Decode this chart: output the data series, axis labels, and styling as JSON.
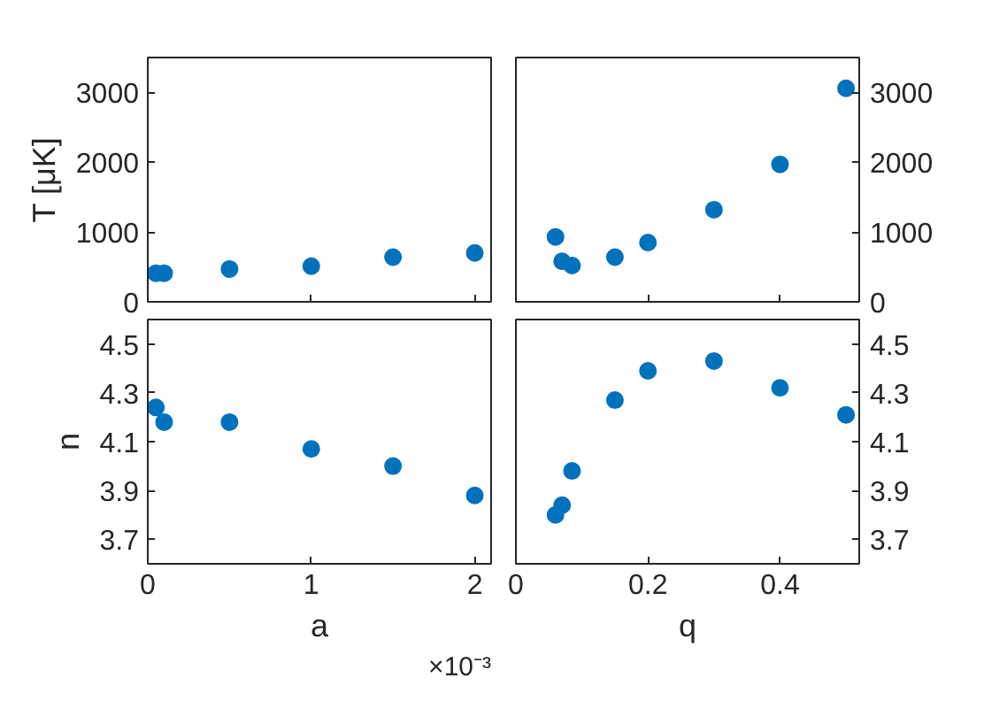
{
  "chart_data": [
    {
      "type": "scatter",
      "ylabel": "T [μK]",
      "x": [
        0.05,
        0.1,
        0.5,
        1,
        1.5,
        2
      ],
      "xlim": [
        0,
        2.1
      ],
      "xticks": [
        0,
        1,
        2
      ],
      "ylim": [
        0,
        3500
      ],
      "yticks": [
        0,
        1000,
        2000,
        3000
      ],
      "tick_labels": "y",
      "marker": "circle",
      "grid": false,
      "series": [
        {
          "color": "#0072bd",
          "values": [
            410,
            410,
            470,
            510,
            640,
            700
          ]
        }
      ]
    },
    {
      "type": "scatter",
      "x": [
        0.06,
        0.07,
        0.085,
        0.15,
        0.2,
        0.3,
        0.4,
        0.5
      ],
      "xlim": [
        0,
        0.52
      ],
      "xticks": [
        0,
        0.2,
        0.4
      ],
      "y2lim": [
        0,
        3500
      ],
      "y2ticks": [
        0,
        1000,
        2000,
        3000
      ],
      "tick_labels": "y",
      "marker": "circle",
      "grid": false,
      "series": [
        {
          "color": "#0072bd",
          "axis": "y2",
          "values": [
            930,
            580,
            520,
            640,
            850,
            1320,
            1970,
            3060
          ]
        }
      ]
    },
    {
      "type": "scatter",
      "xlabel": "a",
      "ylabel": "n",
      "x": [
        0.05,
        0.1,
        0.5,
        1,
        1.5,
        2
      ],
      "xlim": [
        0,
        2.1
      ],
      "xticks": [
        0,
        1,
        2
      ],
      "ylim": [
        3.6,
        4.6
      ],
      "yticks": [
        3.7,
        3.9,
        4.1,
        4.3,
        4.5
      ],
      "marker": "circle",
      "grid": false,
      "annotations": [
        "×10⁻³"
      ],
      "series": [
        {
          "color": "#0072bd",
          "values": [
            4.24,
            4.18,
            4.18,
            4.07,
            4.0,
            3.88
          ]
        }
      ]
    },
    {
      "type": "scatter",
      "xlabel": "q",
      "x": [
        0.06,
        0.07,
        0.085,
        0.15,
        0.2,
        0.3,
        0.4,
        0.5
      ],
      "xlim": [
        0,
        0.52
      ],
      "xticks": [
        0,
        0.2,
        0.4
      ],
      "y2lim": [
        3.6,
        4.6
      ],
      "y2ticks": [
        3.7,
        3.9,
        4.1,
        4.3,
        4.5
      ],
      "marker": "circle",
      "grid": false,
      "series": [
        {
          "color": "#0072bd",
          "axis": "y2",
          "values": [
            3.8,
            3.84,
            3.98,
            4.27,
            4.39,
            4.43,
            4.32,
            4.21
          ]
        }
      ]
    }
  ]
}
